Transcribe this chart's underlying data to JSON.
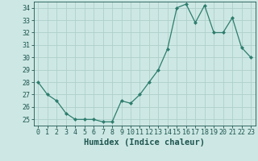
{
  "x": [
    0,
    1,
    2,
    3,
    4,
    5,
    6,
    7,
    8,
    9,
    10,
    11,
    12,
    13,
    14,
    15,
    16,
    17,
    18,
    19,
    20,
    21,
    22,
    23
  ],
  "y": [
    28,
    27,
    26.5,
    25.5,
    25,
    25,
    25,
    24.8,
    24.8,
    26.5,
    26.3,
    27,
    28,
    29,
    30.7,
    34,
    34.3,
    32.8,
    34.2,
    32,
    32,
    33.2,
    30.8,
    30
  ],
  "line_color": "#2e7d6e",
  "marker": "D",
  "marker_size": 2,
  "bg_color": "#cde8e4",
  "grid_color": "#aecfcb",
  "tick_color": "#1e5550",
  "xlabel": "Humidex (Indice chaleur)",
  "xlabel_fontsize": 7.5,
  "tick_fontsize": 6,
  "ylim": [
    24.5,
    34.5
  ],
  "yticks": [
    25,
    26,
    27,
    28,
    29,
    30,
    31,
    32,
    33,
    34
  ],
  "xticks": [
    0,
    1,
    2,
    3,
    4,
    5,
    6,
    7,
    8,
    9,
    10,
    11,
    12,
    13,
    14,
    15,
    16,
    17,
    18,
    19,
    20,
    21,
    22,
    23
  ]
}
